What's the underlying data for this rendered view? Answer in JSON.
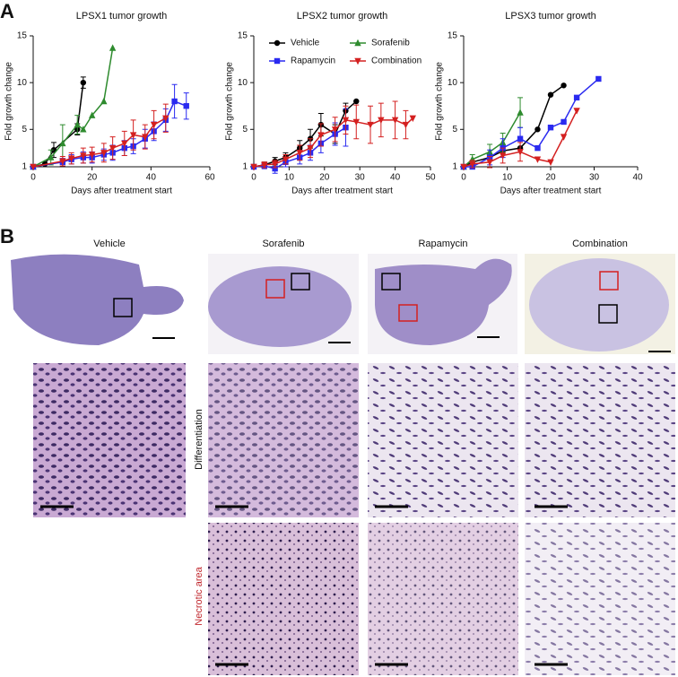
{
  "panel_a": {
    "label": "A"
  },
  "chart_data": [
    {
      "type": "line",
      "title": "LPSX1 tumor growth",
      "x_label": "Days after treatment start",
      "y_label": "Fold growth change",
      "xlim": [
        0,
        60
      ],
      "xticks": [
        0,
        20,
        40,
        60
      ],
      "ylim": [
        1,
        15
      ],
      "yticks": [
        1,
        5,
        10,
        15
      ],
      "series": [
        {
          "name": "Vehicle",
          "color": "#000000",
          "marker": "circle",
          "x": [
            0,
            4,
            7,
            15,
            17
          ],
          "values": [
            1,
            1.3,
            2.8,
            5,
            10
          ],
          "errors": [
            null,
            null,
            0.8,
            0.6,
            0.6
          ]
        },
        {
          "name": "Sorafenib",
          "color": "#2e8b2e",
          "marker": "triangle",
          "x": [
            0,
            6,
            10,
            15,
            17,
            20,
            24,
            27
          ],
          "values": [
            1,
            2,
            3.5,
            5.5,
            5,
            6.5,
            8,
            13.7
          ],
          "errors": [
            null,
            0.8,
            2,
            1,
            null,
            null,
            null,
            null
          ]
        },
        {
          "name": "Rapamycin",
          "color": "#2a2af0",
          "marker": "square",
          "x": [
            0,
            10,
            13,
            17,
            20,
            24,
            27,
            31,
            34,
            38,
            41,
            45,
            48,
            52
          ],
          "values": [
            1,
            1.5,
            1.8,
            2,
            2,
            2.3,
            2.5,
            3,
            3.2,
            4,
            4.8,
            6,
            8,
            7.5
          ],
          "errors": [
            null,
            0.4,
            0.5,
            0.6,
            0.6,
            0.6,
            0.8,
            0.8,
            0.8,
            1,
            1,
            1.2,
            1.8,
            1.4
          ]
        },
        {
          "name": "Combination",
          "color": "#d42020",
          "marker": "triangle-down",
          "x": [
            0,
            10,
            13,
            17,
            20,
            24,
            27,
            31,
            34,
            38,
            41,
            45
          ],
          "values": [
            1,
            1.6,
            1.9,
            2.2,
            2.3,
            2.5,
            3,
            3.5,
            4.4,
            4.2,
            5.5,
            6.2
          ],
          "errors": [
            null,
            0.5,
            0.6,
            0.8,
            0.8,
            1,
            1.2,
            1.3,
            1.6,
            1.3,
            1.5,
            1.5
          ]
        }
      ]
    },
    {
      "type": "line",
      "title": "LPSX2 tumor growth",
      "x_label": "Days after treatment start",
      "y_label": "Fold growth change",
      "xlim": [
        0,
        50
      ],
      "xticks": [
        0,
        10,
        20,
        30,
        40,
        50
      ],
      "ylim": [
        1,
        15
      ],
      "yticks": [
        1,
        5,
        10,
        15
      ],
      "legend": [
        {
          "name": "Vehicle",
          "color": "#000000",
          "marker": "circle"
        },
        {
          "name": "Sorafenib",
          "color": "#2e8b2e",
          "marker": "triangle"
        },
        {
          "name": "Rapamycin",
          "color": "#2a2af0",
          "marker": "square"
        },
        {
          "name": "Combination",
          "color": "#d42020",
          "marker": "triangle-down"
        }
      ],
      "series": [
        {
          "name": "Vehicle",
          "color": "#000000",
          "marker": "circle",
          "x": [
            0,
            3,
            6,
            9,
            13,
            16,
            19,
            23,
            26,
            29
          ],
          "values": [
            1,
            1.2,
            1.6,
            2,
            3,
            4,
            5.5,
            4.5,
            7,
            8
          ],
          "errors": [
            null,
            0.3,
            0.4,
            0.5,
            0.8,
            1,
            1.2,
            1,
            0.8,
            null
          ]
        },
        {
          "name": "Rapamycin",
          "color": "#2a2af0",
          "marker": "square",
          "x": [
            0,
            3,
            6,
            9,
            13,
            16,
            19,
            23,
            26
          ],
          "values": [
            1,
            1.1,
            0.8,
            1.5,
            2,
            2.5,
            3.5,
            4.5,
            5.2
          ],
          "errors": [
            null,
            0.3,
            0.5,
            0.5,
            0.7,
            0.8,
            1,
            1.2,
            2
          ]
        },
        {
          "name": "Combination",
          "color": "#d42020",
          "marker": "triangle-down",
          "x": [
            0,
            3,
            6,
            9,
            13,
            16,
            19,
            23,
            26,
            29,
            33,
            36,
            40,
            43,
            45
          ],
          "values": [
            1,
            1.2,
            1.3,
            1.8,
            2.5,
            3,
            4.4,
            5,
            6,
            5.8,
            5.5,
            6,
            6,
            5.5,
            6.2
          ],
          "errors": [
            null,
            0.3,
            0.4,
            0.5,
            0.8,
            1,
            1.2,
            1.3,
            1.5,
            1.8,
            2,
            1.8,
            2,
            1.5,
            null
          ]
        }
      ]
    },
    {
      "type": "line",
      "title": "LPSX3 tumor growth",
      "x_label": "Days after treatment start",
      "y_label": "Fold growth change",
      "xlim": [
        0,
        40
      ],
      "xticks": [
        0,
        10,
        20,
        30,
        40
      ],
      "ylim": [
        1,
        15
      ],
      "yticks": [
        1,
        5,
        10,
        15
      ],
      "series": [
        {
          "name": "Vehicle",
          "color": "#000000",
          "marker": "circle",
          "x": [
            0,
            2,
            6,
            9,
            13,
            17,
            20,
            23
          ],
          "values": [
            1,
            1.5,
            2,
            2.7,
            3,
            5,
            8.7,
            9.7
          ],
          "errors": [
            null,
            null,
            null,
            null,
            null,
            null,
            null,
            null
          ]
        },
        {
          "name": "Sorafenib",
          "color": "#2e8b2e",
          "marker": "triangle",
          "x": [
            0,
            2,
            6,
            9,
            13
          ],
          "values": [
            1,
            1.8,
            2.6,
            3.6,
            6.8
          ],
          "errors": [
            null,
            0.5,
            0.8,
            1,
            1.6
          ]
        },
        {
          "name": "Rapamycin",
          "color": "#2a2af0",
          "marker": "square",
          "x": [
            0,
            2,
            6,
            9,
            13,
            17,
            20,
            23,
            26,
            31
          ],
          "values": [
            1,
            1,
            2,
            3,
            4,
            3,
            5.2,
            5.8,
            8.4,
            10.4
          ],
          "errors": [
            null,
            null,
            0.8,
            1,
            1.2,
            null,
            null,
            null,
            null,
            null
          ]
        },
        {
          "name": "Combination",
          "color": "#d42020",
          "marker": "triangle-down",
          "x": [
            0,
            2,
            6,
            9,
            13,
            17,
            20,
            23,
            26
          ],
          "values": [
            1,
            1.3,
            1.5,
            2.2,
            2.6,
            1.8,
            1.5,
            4.2,
            7
          ],
          "errors": [
            null,
            0.4,
            0.6,
            0.8,
            1,
            null,
            null,
            null,
            null
          ]
        }
      ]
    }
  ],
  "panel_b": {
    "label": "B",
    "columns": [
      "Vehicle",
      "Sorafenib",
      "Rapamycin",
      "Combination"
    ],
    "rows": [
      "Differentiation",
      "Necrotic area"
    ]
  }
}
